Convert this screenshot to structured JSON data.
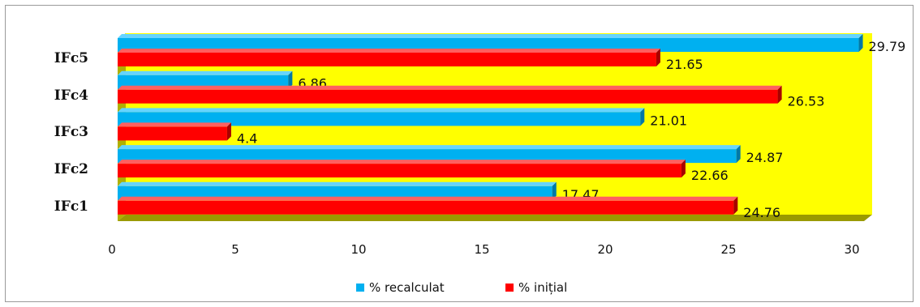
{
  "chart_data": {
    "type": "bar",
    "orientation": "horizontal",
    "style": "3d",
    "categories": [
      "IFc5",
      "IFc4",
      "IFc3",
      "IFc2",
      "IFc1"
    ],
    "series": [
      {
        "name": "% recalculat",
        "color": "#00b0f0",
        "values": [
          29.79,
          6.86,
          21.01,
          24.87,
          17.47
        ]
      },
      {
        "name": "% inițial",
        "color": "#ff0000",
        "values": [
          21.65,
          26.53,
          4.4,
          22.66,
          24.76
        ]
      }
    ],
    "data_labels": {
      "recalculat": [
        "29.79",
        "6.86",
        "21.01",
        "24.87",
        "17.47"
      ],
      "initial": [
        "21.65",
        "26.53",
        "4.4",
        "22.66",
        "24.76"
      ]
    },
    "x_ticks": [
      "0",
      "5",
      "10",
      "15",
      "20",
      "25",
      "30"
    ],
    "xlim": [
      0,
      30
    ],
    "plot_background": "#ffff00",
    "legend_position": "bottom",
    "gridlines": false
  }
}
